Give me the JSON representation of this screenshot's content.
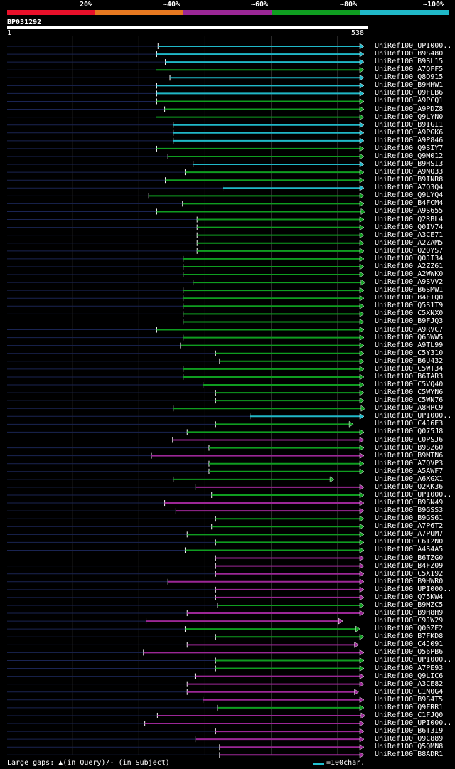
{
  "legend": {
    "colors": [
      "#e8102a",
      "#e67820",
      "#9b2796",
      "#0f9d20",
      "#20b8c8"
    ],
    "labels": [
      "20%",
      "~40%",
      "~60%",
      "~80%",
      "~100%"
    ]
  },
  "query": {
    "id": "BP031292",
    "start": "1",
    "end": "538"
  },
  "footer": {
    "gap_text": "Large gaps: ▲(in Query)/- (in Subject)",
    "scale_text": "=100char."
  },
  "chart_data": {
    "type": "alignment",
    "title": "BP031292",
    "query_length": 538,
    "hits": [
      {
        "name": "UniRef100_UPI000..",
        "start": 229,
        "end": 538,
        "identity": "~100%"
      },
      {
        "name": "UniRef100_B9S480",
        "start": 227,
        "end": 538,
        "identity": "~100%"
      },
      {
        "name": "UniRef100_B9SL15",
        "start": 240,
        "end": 538,
        "identity": "~100%"
      },
      {
        "name": "UniRef100_A7QFF5",
        "start": 226,
        "end": 538,
        "identity": "~80%"
      },
      {
        "name": "UniRef100_Q8O915",
        "start": 247,
        "end": 538,
        "identity": "~100%"
      },
      {
        "name": "UniRef100_B9HHW1",
        "start": 227,
        "end": 538,
        "identity": "~100%"
      },
      {
        "name": "UniRef100_Q9FLB6",
        "start": 227,
        "end": 538,
        "identity": "~100%"
      },
      {
        "name": "UniRef100_A9PCQ1",
        "start": 227,
        "end": 538,
        "identity": "~80%"
      },
      {
        "name": "UniRef100_A9PDZ8",
        "start": 239,
        "end": 538,
        "identity": "~80%"
      },
      {
        "name": "UniRef100_Q9LYN0",
        "start": 226,
        "end": 538,
        "identity": "~80%"
      },
      {
        "name": "UniRef100_B9IGI1",
        "start": 252,
        "end": 538,
        "identity": "~100%"
      },
      {
        "name": "UniRef100_A9PGK6",
        "start": 252,
        "end": 538,
        "identity": "~100%"
      },
      {
        "name": "UniRef100_A9P846",
        "start": 252,
        "end": 538,
        "identity": "~100%"
      },
      {
        "name": "UniRef100_Q9SIY7",
        "start": 227,
        "end": 538,
        "identity": "~80%"
      },
      {
        "name": "UniRef100_Q9M012",
        "start": 244,
        "end": 538,
        "identity": "~80%"
      },
      {
        "name": "UniRef100_B9HSI3",
        "start": 282,
        "end": 538,
        "identity": "~100%"
      },
      {
        "name": "UniRef100_A9NQ33",
        "start": 270,
        "end": 538,
        "identity": "~80%"
      },
      {
        "name": "UniRef100_B9INR8",
        "start": 240,
        "end": 538,
        "identity": "~80%"
      },
      {
        "name": "UniRef100_A7Q3Q4",
        "start": 327,
        "end": 538,
        "identity": "~100%"
      },
      {
        "name": "UniRef100_Q9LYQ4",
        "start": 215,
        "end": 538,
        "identity": "~80%"
      },
      {
        "name": "UniRef100_B4FCM4",
        "start": 266,
        "end": 538,
        "identity": "~80%"
      },
      {
        "name": "UniRef100_A9S655",
        "start": 227,
        "end": 540,
        "identity": "~80%"
      },
      {
        "name": "UniRef100_Q2RBL4",
        "start": 288,
        "end": 538,
        "identity": "~80%"
      },
      {
        "name": "UniRef100_Q0IV74",
        "start": 288,
        "end": 538,
        "identity": "~80%"
      },
      {
        "name": "UniRef100_A3CE71",
        "start": 288,
        "end": 538,
        "identity": "~80%"
      },
      {
        "name": "UniRef100_A2ZAM5",
        "start": 288,
        "end": 538,
        "identity": "~80%"
      },
      {
        "name": "UniRef100_Q2QYS7",
        "start": 288,
        "end": 538,
        "identity": "~80%"
      },
      {
        "name": "UniRef100_Q0JI34",
        "start": 267,
        "end": 538,
        "identity": "~80%"
      },
      {
        "name": "UniRef100_A2ZZ61",
        "start": 267,
        "end": 538,
        "identity": "~80%"
      },
      {
        "name": "UniRef100_A2WWK0",
        "start": 267,
        "end": 538,
        "identity": "~80%"
      },
      {
        "name": "UniRef100_A9SVV2",
        "start": 282,
        "end": 540,
        "identity": "~80%"
      },
      {
        "name": "UniRef100_B6SMW1",
        "start": 267,
        "end": 538,
        "identity": "~80%"
      },
      {
        "name": "UniRef100_B4FTQ0",
        "start": 267,
        "end": 538,
        "identity": "~80%"
      },
      {
        "name": "UniRef100_Q5S1T9",
        "start": 267,
        "end": 538,
        "identity": "~80%"
      },
      {
        "name": "UniRef100_C5XNX0",
        "start": 267,
        "end": 538,
        "identity": "~80%"
      },
      {
        "name": "UniRef100_B9FJQ3",
        "start": 267,
        "end": 538,
        "identity": "~80%"
      },
      {
        "name": "UniRef100_A9RVC7",
        "start": 227,
        "end": 538,
        "identity": "~80%"
      },
      {
        "name": "UniRef100_Q65WW5",
        "start": 267,
        "end": 538,
        "identity": "~80%"
      },
      {
        "name": "UniRef100_A9TL99",
        "start": 263,
        "end": 538,
        "identity": "~80%"
      },
      {
        "name": "UniRef100_C5Y310",
        "start": 316,
        "end": 538,
        "identity": "~80%"
      },
      {
        "name": "UniRef100_B6U432",
        "start": 322,
        "end": 538,
        "identity": "~80%"
      },
      {
        "name": "UniRef100_C5WT34",
        "start": 267,
        "end": 538,
        "identity": "~80%"
      },
      {
        "name": "UniRef100_B6TAR3",
        "start": 267,
        "end": 538,
        "identity": "~80%"
      },
      {
        "name": "UniRef100_C5VQ40",
        "start": 297,
        "end": 538,
        "identity": "~80%"
      },
      {
        "name": "UniRef100_C5WYN6",
        "start": 316,
        "end": 538,
        "identity": "~80%"
      },
      {
        "name": "UniRef100_C5WN76",
        "start": 316,
        "end": 538,
        "identity": "~80%"
      },
      {
        "name": "UniRef100_A8HPC9",
        "start": 252,
        "end": 540,
        "identity": "~80%"
      },
      {
        "name": "UniRef100_UPI000..",
        "start": 368,
        "end": 538,
        "identity": "~100%"
      },
      {
        "name": "UniRef100_C4J6E3",
        "start": 316,
        "end": 522,
        "identity": "~80%"
      },
      {
        "name": "UniRef100_Q075J8",
        "start": 273,
        "end": 538,
        "identity": "~80%"
      },
      {
        "name": "UniRef100_C0PSJ6",
        "start": 251,
        "end": 538,
        "identity": "~60%"
      },
      {
        "name": "UniRef100_B9SZ60",
        "start": 306,
        "end": 538,
        "identity": "~80%"
      },
      {
        "name": "UniRef100_B9MTN6",
        "start": 219,
        "end": 538,
        "identity": "~60%"
      },
      {
        "name": "UniRef100_A7QVP3",
        "start": 306,
        "end": 538,
        "identity": "~80%"
      },
      {
        "name": "UniRef100_A5AWF7",
        "start": 306,
        "end": 538,
        "identity": "~80%"
      },
      {
        "name": "UniRef100_A6XGX1",
        "start": 252,
        "end": 493,
        "identity": "~80%"
      },
      {
        "name": "UniRef100_Q2KK36",
        "start": 286,
        "end": 538,
        "identity": "~60%"
      },
      {
        "name": "UniRef100_UPI000..",
        "start": 310,
        "end": 538,
        "identity": "~80%"
      },
      {
        "name": "UniRef100_B9SN49",
        "start": 239,
        "end": 538,
        "identity": "~60%"
      },
      {
        "name": "UniRef100_B9GSS3",
        "start": 256,
        "end": 538,
        "identity": "~60%"
      },
      {
        "name": "UniRef100_B9GS61",
        "start": 316,
        "end": 538,
        "identity": "~80%"
      },
      {
        "name": "UniRef100_A7P6T2",
        "start": 310,
        "end": 538,
        "identity": "~80%"
      },
      {
        "name": "UniRef100_A7PUM7",
        "start": 273,
        "end": 538,
        "identity": "~80%"
      },
      {
        "name": "UniRef100_C6T2N0",
        "start": 316,
        "end": 538,
        "identity": "~80%"
      },
      {
        "name": "UniRef100_A4S4A5",
        "start": 270,
        "end": 538,
        "identity": "~80%"
      },
      {
        "name": "UniRef100_B6TZG0",
        "start": 316,
        "end": 538,
        "identity": "~60%"
      },
      {
        "name": "UniRef100_B4FZ09",
        "start": 316,
        "end": 538,
        "identity": "~60%"
      },
      {
        "name": "UniRef100_C5X192",
        "start": 316,
        "end": 538,
        "identity": "~60%"
      },
      {
        "name": "UniRef100_B9HWR0",
        "start": 244,
        "end": 538,
        "identity": "~60%"
      },
      {
        "name": "UniRef100_UPI000..",
        "start": 316,
        "end": 538,
        "identity": "~60%"
      },
      {
        "name": "UniRef100_Q75KW4",
        "start": 316,
        "end": 538,
        "identity": "~60%"
      },
      {
        "name": "UniRef100_B9MZC5",
        "start": 319,
        "end": 538,
        "identity": "~80%"
      },
      {
        "name": "UniRef100_B9H8H9",
        "start": 273,
        "end": 538,
        "identity": "~60%"
      },
      {
        "name": "UniRef100_C9JW29",
        "start": 211,
        "end": 506,
        "identity": "~60%"
      },
      {
        "name": "UniRef100_Q00ZE2",
        "start": 270,
        "end": 532,
        "identity": "~80%"
      },
      {
        "name": "UniRef100_B7FKD8",
        "start": 316,
        "end": 538,
        "identity": "~80%"
      },
      {
        "name": "UniRef100_C4J091",
        "start": 273,
        "end": 530,
        "identity": "~60%"
      },
      {
        "name": "UniRef100_Q56PB6",
        "start": 207,
        "end": 538,
        "identity": "~60%"
      },
      {
        "name": "UniRef100_UPI000..",
        "start": 316,
        "end": 538,
        "identity": "~80%"
      },
      {
        "name": "UniRef100_A7PE93",
        "start": 316,
        "end": 538,
        "identity": "~80%"
      },
      {
        "name": "UniRef100_Q9LIC6",
        "start": 285,
        "end": 538,
        "identity": "~60%"
      },
      {
        "name": "UniRef100_A3CE82",
        "start": 273,
        "end": 538,
        "identity": "~60%"
      },
      {
        "name": "UniRef100_C1N0G4",
        "start": 273,
        "end": 530,
        "identity": "~60%"
      },
      {
        "name": "UniRef100_B9S4T5",
        "start": 297,
        "end": 538,
        "identity": "~60%"
      },
      {
        "name": "UniRef100_Q9FRR1",
        "start": 319,
        "end": 538,
        "identity": "~80%"
      },
      {
        "name": "UniRef100_C1FJQ0",
        "start": 228,
        "end": 540,
        "identity": "~60%"
      },
      {
        "name": "UniRef100_UPI000..",
        "start": 209,
        "end": 538,
        "identity": "~60%"
      },
      {
        "name": "UniRef100_B6T3I9",
        "start": 316,
        "end": 538,
        "identity": "~60%"
      },
      {
        "name": "UniRef100_Q9C889",
        "start": 286,
        "end": 538,
        "identity": "~60%"
      },
      {
        "name": "UniRef100_Q5QMN8",
        "start": 322,
        "end": 538,
        "identity": "~60%"
      },
      {
        "name": "UniRef100_B8ADR1",
        "start": 322,
        "end": 538,
        "identity": "~60%"
      }
    ]
  }
}
